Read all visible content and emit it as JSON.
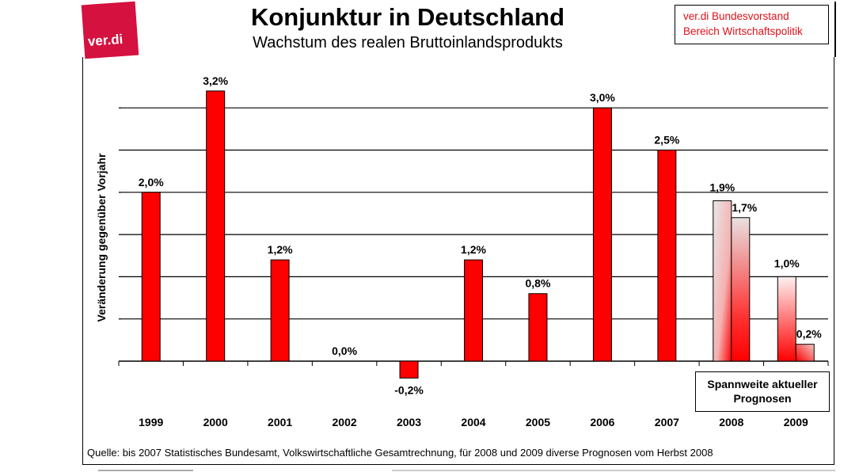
{
  "logo": {
    "text": "ver.di",
    "color": "#d4113f"
  },
  "org_box": {
    "line1": "ver.di Bundesvorstand",
    "line2": "Bereich Wirtschaftspolitik"
  },
  "legend_box": {
    "line1": "Spannweite aktueller",
    "line2": "Prognosen"
  },
  "source_note": "Quelle: bis 2007 Statistisches Bundesamt, Volkswirtschaftliche Gesamtrechnung, für 2008 und 2009 diverse Prognosen vom Herbst 2008",
  "colors": {
    "bar": "#ff0000",
    "forecast_light": "#e6e6e6"
  },
  "chart_data": {
    "type": "bar",
    "title": "Konjunktur in Deutschland",
    "subtitle": "Wachstum des realen Bruttoinlandsprodukts",
    "xlabel": "",
    "ylabel": "Veränderung gegenüber Vorjahr",
    "ylim": [
      -0.5,
      3.5
    ],
    "grid": true,
    "gridlines": [
      0.5,
      1.0,
      1.5,
      2.0,
      2.5,
      3.0
    ],
    "categories": [
      "1999",
      "2000",
      "2001",
      "2002",
      "2003",
      "2004",
      "2005",
      "2006",
      "2007",
      "2008",
      "2009"
    ],
    "values": [
      2.0,
      3.2,
      1.2,
      0.0,
      -0.2,
      1.2,
      0.8,
      3.0,
      2.5,
      null,
      null
    ],
    "labels": [
      "2,0%",
      "3,2%",
      "1,2%",
      "0,0%",
      "-0,2%",
      "1,2%",
      "0,8%",
      "3,0%",
      "2,5%",
      "",
      ""
    ],
    "forecast_ranges": [
      {
        "category": "2008",
        "high": 1.9,
        "low": 1.7,
        "high_label": "1,9%",
        "low_label": "1,7%"
      },
      {
        "category": "2009",
        "high": 1.0,
        "low": 0.2,
        "high_label": "1,0%",
        "low_label": "0,2%"
      }
    ]
  }
}
